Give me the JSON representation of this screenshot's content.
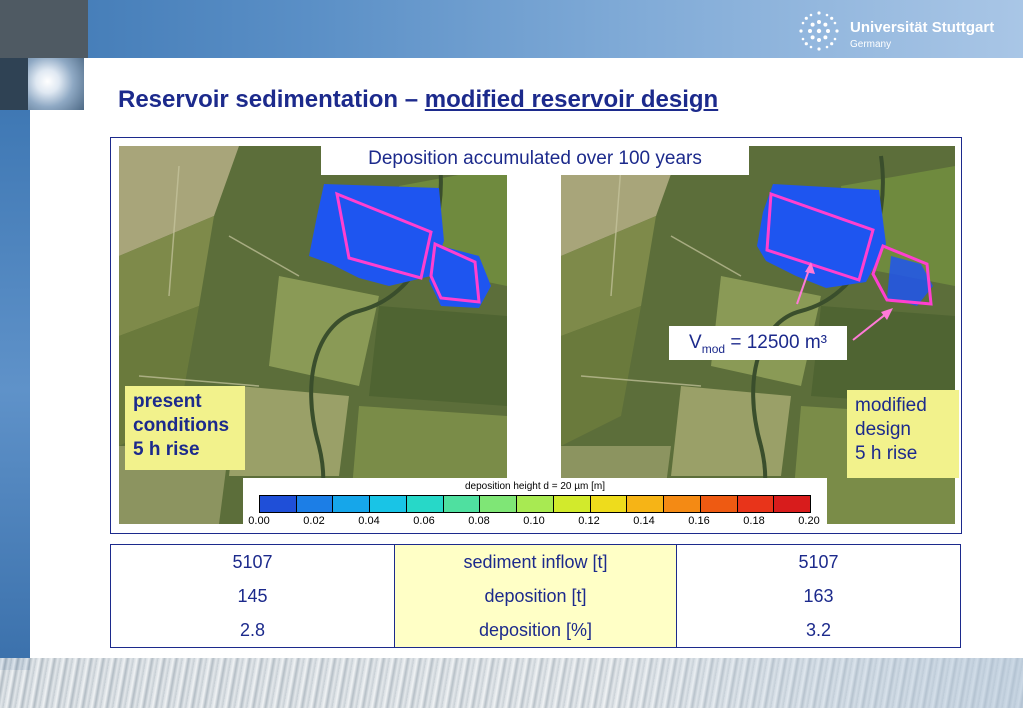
{
  "header": {
    "university_name": "Universität Stuttgart",
    "university_country": "Germany"
  },
  "title": {
    "main": "Reservoir sedimentation – ",
    "sub": "modified reservoir design"
  },
  "figure": {
    "caption": "Deposition accumulated over 100 years",
    "left_label": [
      "present",
      "conditions",
      "5 h rise"
    ],
    "right_label": [
      "modified",
      "design",
      "5 h rise"
    ],
    "vmod": {
      "prefix": "V",
      "subscript": "mod",
      "suffix": " = 12500 m³"
    },
    "colorbar": {
      "title": "deposition height d = 20 µm [m]",
      "ticks": [
        "0.00",
        "0.02",
        "0.04",
        "0.06",
        "0.08",
        "0.10",
        "0.12",
        "0.14",
        "0.16",
        "0.18",
        "0.20"
      ],
      "colors": [
        "#1f4fd8",
        "#1c7ee6",
        "#16a6ea",
        "#19c4e6",
        "#27d8c8",
        "#4fe0a0",
        "#7fe676",
        "#a8ea52",
        "#d2ea2c",
        "#eedc1c",
        "#f6b416",
        "#f48a14",
        "#ee5a12",
        "#e8341a",
        "#d81c1c"
      ]
    },
    "colors": {
      "deposit_blue": "#1e55f0",
      "outline_pink": "#ff3fd0",
      "arrow_pink": "#ff7ad8"
    }
  },
  "table": {
    "rows": [
      {
        "left": "5107",
        "mid": "sediment inflow [t]",
        "right": "5107"
      },
      {
        "left": "145",
        "mid": "deposition [t]",
        "right": "163"
      },
      {
        "left": "2.8",
        "mid": "deposition [%]",
        "right": "3.2"
      }
    ]
  }
}
